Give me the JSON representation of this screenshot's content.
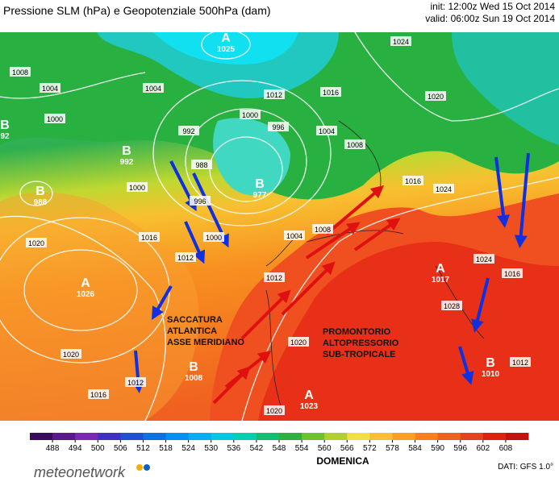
{
  "header": {
    "title": "Pressione SLM (hPa) e Geopotenziale 500hPa (dam)",
    "init": "init: 12:00z Wed 15 Oct 2014",
    "valid": "valid: 06:00z Sun 19 Oct 2014"
  },
  "centers": [
    {
      "letter": "A",
      "value": "1025"
    },
    {
      "letter": "B",
      "value": "992"
    },
    {
      "letter": "B",
      "value": "977"
    },
    {
      "letter": "B",
      "value": "988"
    },
    {
      "letter": "A",
      "value": "1026"
    },
    {
      "letter": "B",
      "value": "1008"
    },
    {
      "letter": "A",
      "value": "1023"
    },
    {
      "letter": "B",
      "value": "1010"
    },
    {
      "letter": "A",
      "value": "1017"
    },
    {
      "letter": "B",
      "value": "92"
    }
  ],
  "isobar_labels": [
    "1024",
    "1008",
    "1004",
    "1000",
    "1012",
    "1016",
    "1000",
    "996",
    "1004",
    "992",
    "988",
    "1000",
    "996",
    "1000",
    "1016",
    "1020",
    "1012",
    "1008",
    "1004",
    "1012",
    "1024",
    "1016",
    "1020",
    "1024",
    "1016",
    "1028",
    "1020",
    "1016",
    "1012",
    "1020",
    "1020",
    "1012",
    "1008",
    "1004"
  ],
  "annotations": {
    "left": [
      "SACCATURA",
      "ATLANTICA",
      "ASSE MERIDIANO"
    ],
    "right": [
      "PROMONTORIO",
      "ALTOPRESSORIO",
      "SUB-TROPICALE"
    ]
  },
  "colorbar": {
    "ticks": [
      488,
      494,
      500,
      506,
      512,
      518,
      524,
      530,
      536,
      542,
      548,
      554,
      560,
      566,
      572,
      578,
      584,
      590,
      596,
      602,
      608
    ],
    "colors": [
      "#3a0a5c",
      "#5a1a8a",
      "#7a2ab0",
      "#4030c0",
      "#2050d0",
      "#1070e0",
      "#0090f0",
      "#00b0f0",
      "#00c8e0",
      "#00d0b0",
      "#10c070",
      "#30b040",
      "#70c030",
      "#b0d030",
      "#f0e040",
      "#f8c030",
      "#f8a020",
      "#f88020",
      "#f06020",
      "#e84020",
      "#e02010",
      "#c81010"
    ],
    "label": "DOMENICA"
  },
  "footer": {
    "logo": "meteonetwork",
    "credit": "DATI: GFS 1.0°"
  }
}
